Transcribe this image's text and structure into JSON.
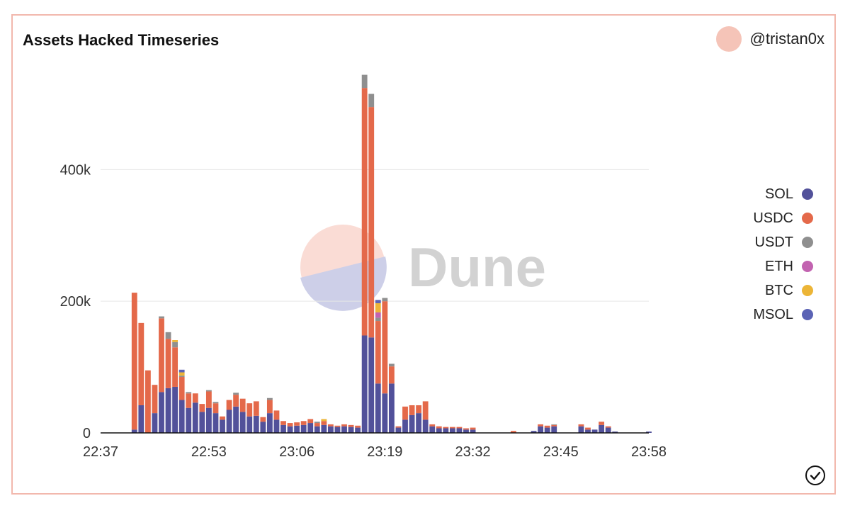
{
  "header": {
    "title": "Assets Hacked Timeseries",
    "author": "@tristan0x"
  },
  "watermark": {
    "text": "Dune"
  },
  "colors": {
    "SOL": "#52519a",
    "USDC": "#e4694a",
    "USDT": "#8f8f8f",
    "ETH": "#c263b0",
    "BTC": "#ecb537",
    "MSOL": "#5b63b5"
  },
  "legend": [
    {
      "name": "SOL",
      "color": "#52519a"
    },
    {
      "name": "USDC",
      "color": "#e4694a"
    },
    {
      "name": "USDT",
      "color": "#8f8f8f"
    },
    {
      "name": "ETH",
      "color": "#c263b0"
    },
    {
      "name": "BTC",
      "color": "#ecb537"
    },
    {
      "name": "MSOL",
      "color": "#5b63b5"
    }
  ],
  "chart_data": {
    "type": "bar",
    "stacked": true,
    "title": "Assets Hacked Timeseries",
    "xlabel": "",
    "ylabel": "",
    "ylim": [
      0,
      550000
    ],
    "yticks": [
      0,
      200000,
      400000
    ],
    "ytick_labels": [
      "0",
      "200k",
      "400k"
    ],
    "x_tick_labels": [
      "22:37",
      "22:53",
      "23:06",
      "23:19",
      "23:32",
      "23:45",
      "23:58"
    ],
    "x_tick_times": [
      "22:37",
      "22:53",
      "23:06",
      "23:19",
      "23:32",
      "23:45",
      "23:58"
    ],
    "grid": true,
    "legend_position": "right",
    "categories": [
      "22:42",
      "22:43",
      "22:44",
      "22:45",
      "22:46",
      "22:47",
      "22:48",
      "22:49",
      "22:50",
      "22:51",
      "22:52",
      "22:53",
      "22:54",
      "22:55",
      "22:56",
      "22:57",
      "22:58",
      "22:59",
      "23:00",
      "23:01",
      "23:02",
      "23:03",
      "23:04",
      "23:05",
      "23:06",
      "23:07",
      "23:08",
      "23:09",
      "23:10",
      "23:11",
      "23:12",
      "23:13",
      "23:14",
      "23:15",
      "23:16",
      "23:17",
      "23:18",
      "23:19",
      "23:20",
      "23:21",
      "23:22",
      "23:23",
      "23:24",
      "23:25",
      "23:26",
      "23:27",
      "23:28",
      "23:29",
      "23:30",
      "23:31",
      "23:32",
      "23:33",
      "23:34",
      "23:35",
      "23:36",
      "23:37",
      "23:38",
      "23:39",
      "23:40",
      "23:41",
      "23:42",
      "23:43",
      "23:44",
      "23:45",
      "23:46",
      "23:47",
      "23:48",
      "23:49",
      "23:50",
      "23:51",
      "23:52",
      "23:53",
      "23:54",
      "23:55",
      "23:56",
      "23:57",
      "23:58"
    ],
    "series": [
      {
        "name": "SOL",
        "values": [
          5000,
          42000,
          0,
          30000,
          62000,
          68000,
          70000,
          50000,
          38000,
          46000,
          32000,
          38000,
          30000,
          20000,
          35000,
          40000,
          32000,
          25000,
          26000,
          17000,
          30000,
          20000,
          12000,
          10000,
          11000,
          12000,
          15000,
          10000,
          12000,
          10000,
          9000,
          10000,
          9000,
          8000,
          148000,
          145000,
          75000,
          60000,
          75000,
          8000,
          20000,
          27000,
          30000,
          20000,
          10000,
          7000,
          7000,
          7000,
          7000,
          5000,
          5000,
          0,
          0,
          0,
          0,
          0,
          0,
          0,
          0,
          3000,
          10000,
          8000,
          10000,
          0,
          0,
          0,
          10000,
          5000,
          5000,
          12000,
          8000,
          2000,
          0,
          0,
          0,
          0,
          2000
        ]
      },
      {
        "name": "USDC",
        "values": [
          208000,
          125000,
          95000,
          43000,
          112000,
          75000,
          60000,
          35000,
          22000,
          14000,
          12000,
          25000,
          15000,
          5000,
          15000,
          18000,
          20000,
          20000,
          22000,
          7000,
          20000,
          14000,
          6000,
          5000,
          5000,
          6000,
          6000,
          5000,
          6000,
          3000,
          2000,
          3000,
          3000,
          3000,
          376000,
          350000,
          95000,
          140000,
          26000,
          2000,
          20000,
          15000,
          12000,
          28000,
          3000,
          3000,
          2000,
          2000,
          2000,
          2000,
          3000,
          0,
          0,
          0,
          0,
          0,
          3000,
          0,
          0,
          0,
          3000,
          3000,
          2000,
          0,
          0,
          0,
          3000,
          3000,
          0,
          5000,
          2000,
          0,
          0,
          0,
          0,
          0,
          0
        ]
      },
      {
        "name": "USDT",
        "values": [
          0,
          0,
          0,
          0,
          3000,
          10000,
          8000,
          2000,
          2000,
          0,
          0,
          2000,
          2000,
          0,
          0,
          3000,
          0,
          0,
          0,
          0,
          3000,
          0,
          0,
          0,
          0,
          0,
          0,
          2000,
          0,
          0,
          0,
          0,
          0,
          0,
          20000,
          20000,
          5000,
          5000,
          4000,
          0,
          0,
          0,
          0,
          0,
          0,
          0,
          0,
          0,
          0,
          0,
          0,
          0,
          0,
          0,
          0,
          0,
          0,
          0,
          0,
          0,
          0,
          0,
          1000,
          0,
          0,
          0,
          0,
          0,
          0,
          0,
          0,
          0,
          0,
          0,
          0,
          0,
          0
        ]
      },
      {
        "name": "ETH",
        "values": [
          0,
          0,
          0,
          0,
          0,
          0,
          0,
          0,
          0,
          0,
          0,
          0,
          0,
          0,
          0,
          0,
          0,
          0,
          0,
          0,
          0,
          0,
          0,
          0,
          0,
          0,
          0,
          0,
          0,
          0,
          0,
          0,
          0,
          0,
          0,
          0,
          8000,
          0,
          0,
          0,
          0,
          0,
          0,
          0,
          0,
          0,
          0,
          0,
          0,
          0,
          0,
          0,
          0,
          0,
          0,
          0,
          0,
          0,
          0,
          0,
          0,
          0,
          0,
          0,
          0,
          0,
          0,
          0,
          0,
          0,
          0,
          0,
          0,
          0,
          0,
          0,
          0
        ]
      },
      {
        "name": "BTC",
        "values": [
          0,
          0,
          0,
          0,
          0,
          0,
          3000,
          5000,
          0,
          0,
          0,
          0,
          0,
          0,
          0,
          0,
          0,
          0,
          0,
          0,
          0,
          0,
          0,
          0,
          0,
          0,
          0,
          0,
          3000,
          0,
          0,
          0,
          0,
          0,
          0,
          0,
          14000,
          0,
          0,
          0,
          0,
          0,
          0,
          0,
          0,
          0,
          0,
          0,
          0,
          0,
          0,
          0,
          0,
          0,
          0,
          0,
          0,
          0,
          0,
          0,
          0,
          0,
          0,
          0,
          0,
          0,
          0,
          0,
          0,
          0,
          0,
          0,
          0,
          0,
          0,
          0,
          0
        ]
      },
      {
        "name": "MSOL",
        "values": [
          0,
          0,
          0,
          0,
          0,
          0,
          0,
          4000,
          0,
          0,
          0,
          0,
          0,
          0,
          0,
          0,
          0,
          0,
          0,
          0,
          0,
          0,
          0,
          0,
          0,
          0,
          0,
          0,
          0,
          0,
          0,
          0,
          0,
          0,
          0,
          0,
          5000,
          0,
          0,
          0,
          0,
          0,
          0,
          0,
          0,
          0,
          0,
          0,
          0,
          0,
          0,
          0,
          0,
          0,
          0,
          0,
          0,
          0,
          0,
          0,
          0,
          0,
          0,
          0,
          0,
          0,
          0,
          0,
          0,
          0,
          0,
          0,
          0,
          0,
          0,
          0,
          0
        ]
      }
    ]
  }
}
